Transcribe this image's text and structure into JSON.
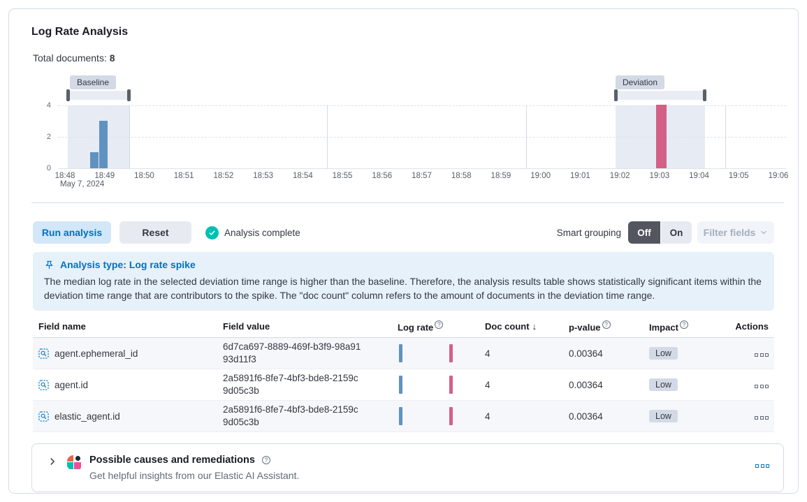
{
  "header": {
    "title": "Log Rate Analysis"
  },
  "summary": {
    "label": "Total documents:",
    "value": "8"
  },
  "chart": {
    "baseline_label": "Baseline",
    "deviation_label": "Deviation",
    "y_ticks": [
      "4",
      "2",
      "0"
    ],
    "x_ticks": [
      "18:48",
      "18:49",
      "18:50",
      "18:51",
      "18:52",
      "18:53",
      "18:54",
      "18:55",
      "18:56",
      "18:57",
      "18:58",
      "18:59",
      "19:00",
      "19:01",
      "19:02",
      "19:03",
      "19:04",
      "19:05",
      "19:06"
    ],
    "x_date": "May 7, 2024"
  },
  "chart_data": {
    "type": "bar",
    "title": "Document count over time",
    "x_range": [
      "18:48",
      "19:06"
    ],
    "x_date": "May 7, 2024",
    "ylim": [
      0,
      4
    ],
    "y_ticks": [
      0,
      2,
      4
    ],
    "grid": true,
    "baseline_window": [
      "18:48",
      "18:50"
    ],
    "deviation_window": [
      "19:02",
      "19:04"
    ],
    "bars": [
      {
        "time": "18:48:45",
        "value": 1,
        "series": "baseline",
        "color": "#6092c0"
      },
      {
        "time": "18:49:00",
        "value": 3,
        "series": "baseline",
        "color": "#6092c0"
      },
      {
        "time": "19:03:00",
        "value": 4,
        "series": "deviation",
        "color": "#d36086"
      }
    ]
  },
  "toolbar": {
    "run_label": "Run analysis",
    "reset_label": "Reset",
    "status_label": "Analysis complete",
    "smart_grouping_label": "Smart grouping",
    "toggle_off_label": "Off",
    "toggle_on_label": "On",
    "filter_fields_label": "Filter fields"
  },
  "callout": {
    "title": "Analysis type: Log rate spike",
    "body": "The median log rate in the selected deviation time range is higher than the baseline. Therefore, the analysis results table shows statistically significant items within the deviation time range that are contributors to the spike. The \"doc count\" column refers to the amount of documents in the deviation time range."
  },
  "table": {
    "headers": {
      "field_name": "Field name",
      "field_value": "Field value",
      "log_rate": "Log rate",
      "doc_count": "Doc count",
      "p_value": "p-value",
      "impact": "Impact",
      "actions": "Actions"
    },
    "sort": {
      "column": "Doc count",
      "direction": "descending",
      "arrow": "↓"
    },
    "rows": [
      {
        "field_name": "agent.ephemeral_id",
        "field_value": "6d7ca697-8889-469f-b3f9-98a9193d11f3",
        "doc_count": "4",
        "p_value": "0.00364",
        "impact": "Low"
      },
      {
        "field_name": "agent.id",
        "field_value": "2a5891f6-8fe7-4bf3-bde8-2159c9d05c3b",
        "doc_count": "4",
        "p_value": "0.00364",
        "impact": "Low"
      },
      {
        "field_name": "elastic_agent.id",
        "field_value": "2a5891f6-8fe7-4bf3-bde8-2159c9d05c3b",
        "doc_count": "4",
        "p_value": "0.00364",
        "impact": "Low"
      }
    ]
  },
  "insights": {
    "title": "Possible causes and remediations",
    "subtitle": "Get helpful insights from our Elastic AI Assistant."
  },
  "icons": {
    "pin": "pin-icon",
    "check": "check-in-circle-icon",
    "question": "question-in-circle-icon",
    "field_filter": "field-search-icon",
    "actions": "boxes-horizontal-icon",
    "chevron_right": "chevron-right-icon",
    "chevron_down": "chevron-down-icon",
    "ai_assistant": "elastic-ai-assistant-logo"
  },
  "colors": {
    "accent_blue": "#0071c2",
    "bar_blue": "#6092c0",
    "bar_pink": "#d36086",
    "success_teal": "#00bfb3",
    "callout_bg": "#e6f1fa",
    "badge_bg": "#d3dae6",
    "toggle_selected": "#53565f"
  }
}
